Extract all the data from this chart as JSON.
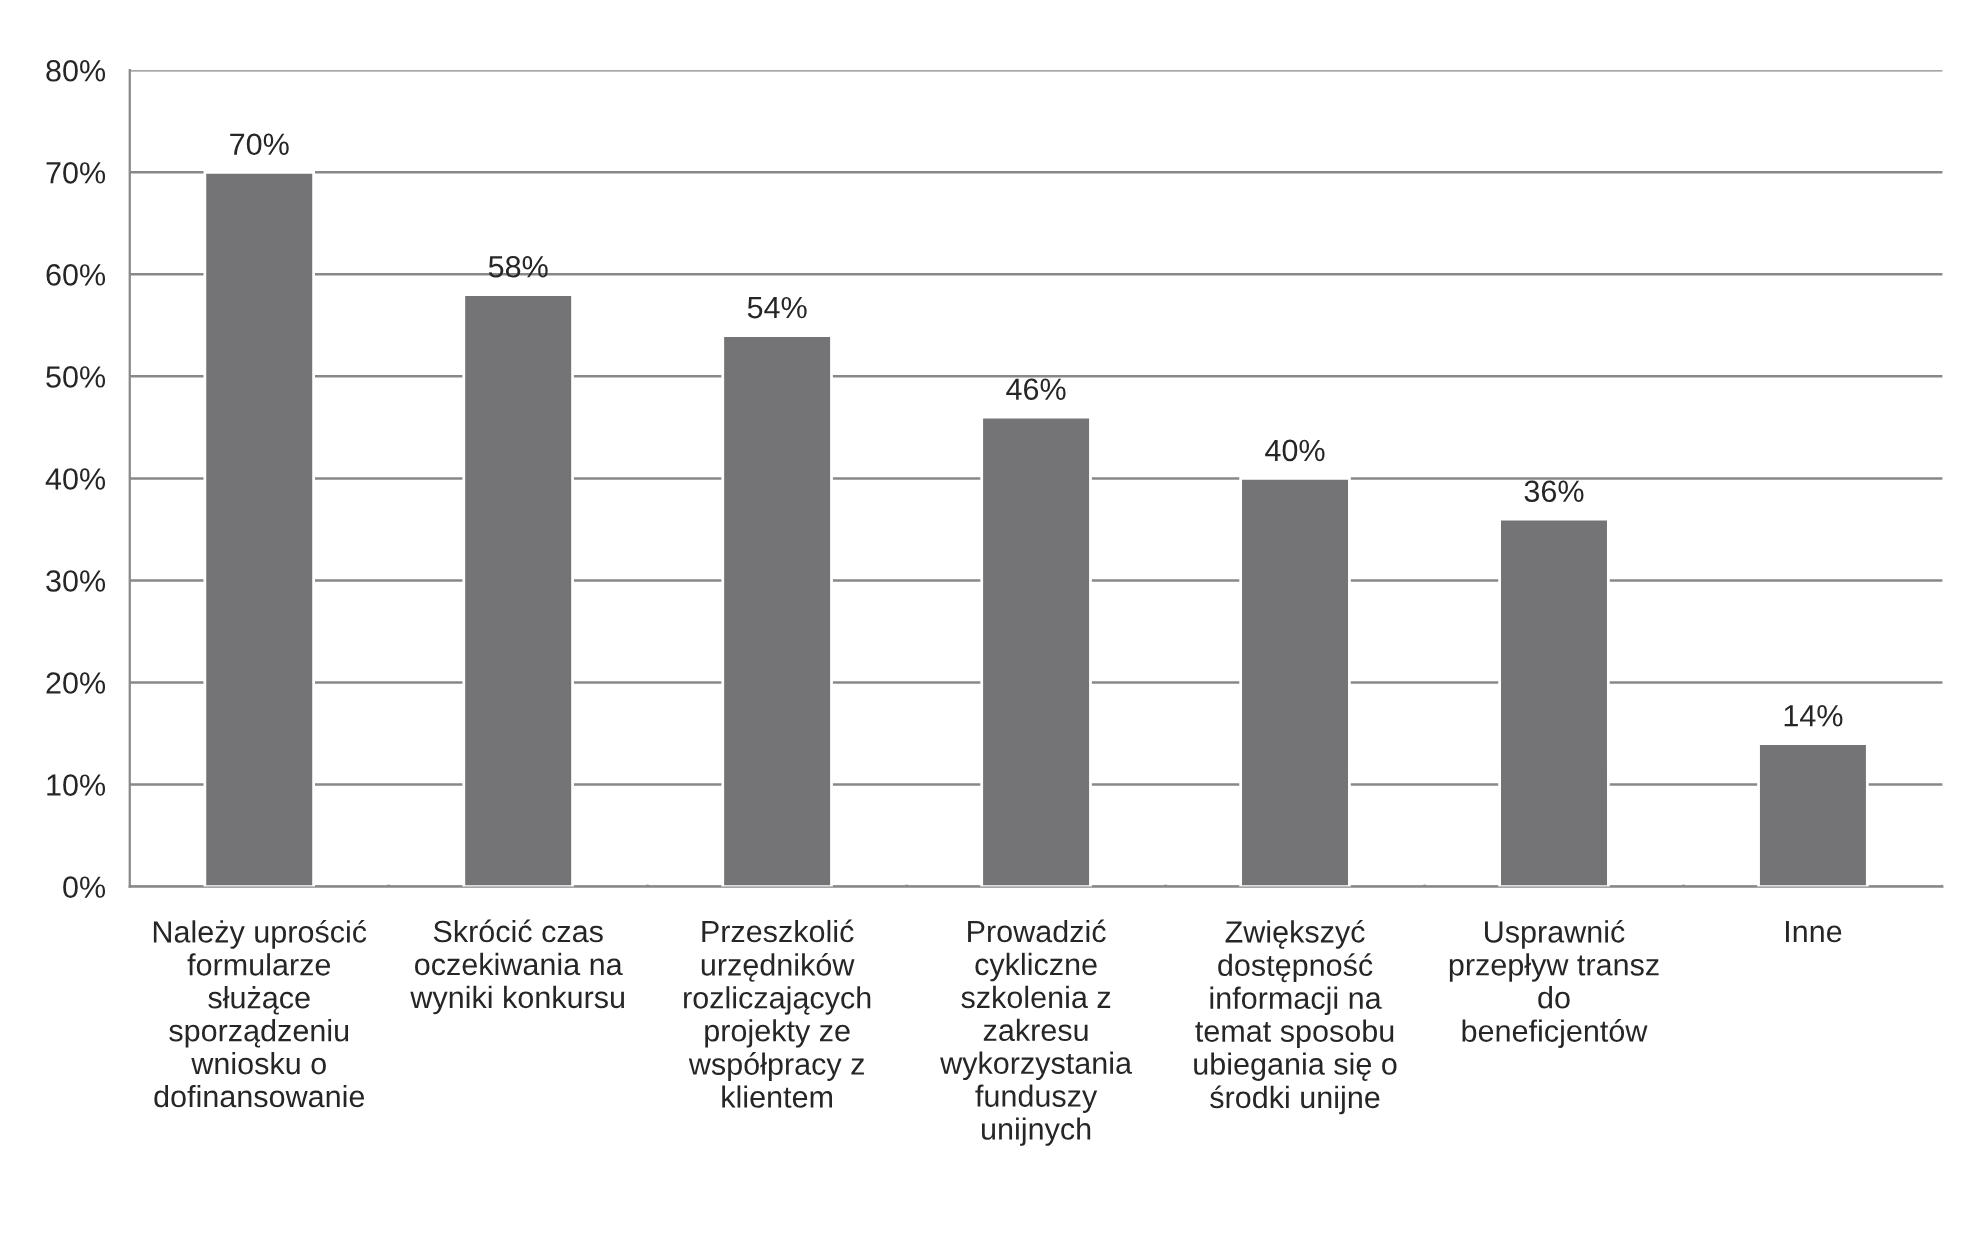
{
  "chart_data": {
    "type": "bar",
    "categories": [
      "Należy uprościć\nformularze\nsłużące\nsporządzeniu\nwniosku o\ndofinansowanie",
      "Skrócić czas\noczekiwania na\nwyniki konkursu",
      "Przeszkolić\nurzędników\nrozliczających\nprojekty ze\nwspółpracy z\nklientem",
      "Prowadzić\ncykliczne\nszkolenia z\nzakresu\nwykorzystania\nfunduszy\nunijnych",
      "Zwiększyć\ndostępność\ninformacji na\ntemat sposobu\nubiegania się o\nśrodki unijne",
      "Usprawnić\nprzepływ transz\ndo\nbeneficjentów",
      "Inne"
    ],
    "values": [
      70,
      58,
      54,
      46,
      40,
      36,
      14
    ],
    "value_labels": [
      "70%",
      "58%",
      "54%",
      "46%",
      "40%",
      "36%",
      "14%"
    ],
    "color": "#747476",
    "ylim": [
      0,
      80
    ],
    "yticks": [
      {
        "value": 0,
        "label": "0%"
      },
      {
        "value": 10,
        "label": "10%"
      },
      {
        "value": 20,
        "label": "20%"
      },
      {
        "value": 30,
        "label": "30%"
      },
      {
        "value": 40,
        "label": "40%"
      },
      {
        "value": 50,
        "label": "50%"
      },
      {
        "value": 60,
        "label": "60%"
      },
      {
        "value": 70,
        "label": "70%"
      },
      {
        "value": 80,
        "label": "80%"
      }
    ],
    "grid": "y",
    "legend": false
  }
}
